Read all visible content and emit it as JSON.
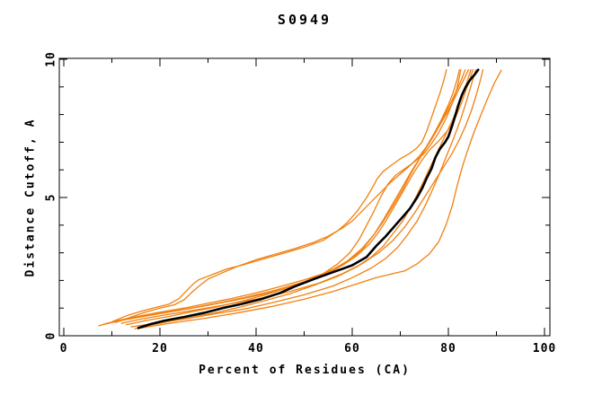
{
  "figure": {
    "title": "S0949"
  },
  "chart_data": {
    "type": "line",
    "title": "S0949",
    "xlabel": "Percent of Residues (CA)",
    "ylabel": "Distance Cutoff, A",
    "xlim": [
      0,
      100
    ],
    "ylim": [
      0,
      10
    ],
    "x_major_ticks": [
      0,
      20,
      40,
      60,
      80,
      100
    ],
    "x_minor_step": 10,
    "y_major_ticks": [
      0,
      5,
      10
    ],
    "y_minor_step": 1,
    "grid": false,
    "legend_position": "none",
    "colors": {
      "axis": "#000000",
      "model_line": "#f08010",
      "highlight_line": "#000000"
    },
    "highlight_series": {
      "name": "highlighted-model",
      "color": "#000000",
      "points": [
        [
          15.5,
          0.28
        ],
        [
          18,
          0.42
        ],
        [
          21,
          0.55
        ],
        [
          25,
          0.68
        ],
        [
          29,
          0.82
        ],
        [
          33,
          1.0
        ],
        [
          37,
          1.15
        ],
        [
          41,
          1.32
        ],
        [
          45,
          1.55
        ],
        [
          48,
          1.78
        ],
        [
          52,
          2.05
        ],
        [
          56,
          2.3
        ],
        [
          60,
          2.55
        ],
        [
          63,
          2.85
        ],
        [
          65,
          3.25
        ],
        [
          67,
          3.6
        ],
        [
          69,
          4.0
        ],
        [
          70.5,
          4.3
        ],
        [
          72,
          4.6
        ],
        [
          73.5,
          5.0
        ],
        [
          74.6,
          5.35
        ],
        [
          75.5,
          5.7
        ],
        [
          76.5,
          6.05
        ],
        [
          77.3,
          6.45
        ],
        [
          78.2,
          6.75
        ],
        [
          79.3,
          7.0
        ],
        [
          80,
          7.2
        ],
        [
          80.8,
          7.6
        ],
        [
          81.5,
          8.0
        ],
        [
          82.1,
          8.35
        ],
        [
          82.8,
          8.7
        ],
        [
          83.6,
          9.0
        ],
        [
          84.5,
          9.25
        ],
        [
          85.5,
          9.45
        ],
        [
          86.2,
          9.62
        ]
      ]
    },
    "series": [
      {
        "name": "model-01",
        "color": "#f08010",
        "points": [
          [
            10.2,
            0.52
          ],
          [
            13,
            0.72
          ],
          [
            16,
            0.88
          ],
          [
            19,
            1.02
          ],
          [
            22,
            1.15
          ],
          [
            24,
            1.35
          ],
          [
            25.5,
            1.62
          ],
          [
            27,
            1.88
          ],
          [
            28,
            2.02
          ],
          [
            31,
            2.22
          ],
          [
            34,
            2.42
          ],
          [
            37,
            2.55
          ],
          [
            40,
            2.7
          ],
          [
            43,
            2.85
          ],
          [
            47,
            3.05
          ],
          [
            50,
            3.2
          ],
          [
            54,
            3.45
          ],
          [
            57,
            3.8
          ],
          [
            59,
            4.1
          ],
          [
            61,
            4.5
          ],
          [
            63,
            5.0
          ],
          [
            64.5,
            5.45
          ],
          [
            65.2,
            5.68
          ],
          [
            66.5,
            5.95
          ],
          [
            68,
            6.15
          ],
          [
            70,
            6.4
          ],
          [
            72,
            6.6
          ],
          [
            73.5,
            6.8
          ],
          [
            74.5,
            7.0
          ],
          [
            75.5,
            7.4
          ],
          [
            76.5,
            7.9
          ],
          [
            77.5,
            8.4
          ],
          [
            78.3,
            8.8
          ],
          [
            79,
            9.2
          ],
          [
            79.6,
            9.62
          ]
        ]
      },
      {
        "name": "model-02",
        "color": "#f08010",
        "points": [
          [
            10.8,
            0.48
          ],
          [
            14,
            0.68
          ],
          [
            17,
            0.85
          ],
          [
            20,
            1.0
          ],
          [
            23,
            1.12
          ],
          [
            25,
            1.3
          ],
          [
            26.5,
            1.55
          ],
          [
            28.5,
            1.85
          ],
          [
            30,
            2.05
          ],
          [
            33,
            2.28
          ],
          [
            36,
            2.5
          ],
          [
            40,
            2.75
          ],
          [
            44,
            2.95
          ],
          [
            48,
            3.15
          ],
          [
            52,
            3.38
          ],
          [
            55,
            3.6
          ],
          [
            58,
            3.9
          ],
          [
            60,
            4.15
          ],
          [
            62,
            4.5
          ],
          [
            64,
            4.85
          ],
          [
            66,
            5.2
          ],
          [
            68,
            5.55
          ],
          [
            70,
            5.85
          ],
          [
            72,
            6.15
          ],
          [
            74,
            6.5
          ],
          [
            75.5,
            6.85
          ],
          [
            77,
            7.3
          ],
          [
            78.5,
            7.8
          ],
          [
            80,
            8.35
          ],
          [
            81,
            8.8
          ],
          [
            81.8,
            9.25
          ],
          [
            82.3,
            9.62
          ]
        ]
      },
      {
        "name": "model-03",
        "color": "#f08010",
        "points": [
          [
            7.3,
            0.36
          ],
          [
            9,
            0.45
          ],
          [
            12,
            0.58
          ],
          [
            16,
            0.72
          ],
          [
            20,
            0.85
          ],
          [
            25,
            1.0
          ],
          [
            30,
            1.18
          ],
          [
            35,
            1.35
          ],
          [
            40,
            1.55
          ],
          [
            45,
            1.78
          ],
          [
            50,
            2.02
          ],
          [
            54,
            2.25
          ],
          [
            58,
            2.55
          ],
          [
            61,
            2.9
          ],
          [
            63.5,
            3.3
          ],
          [
            65.5,
            3.75
          ],
          [
            67,
            4.15
          ],
          [
            68.5,
            4.6
          ],
          [
            70,
            5.05
          ],
          [
            71.5,
            5.5
          ],
          [
            73,
            5.95
          ],
          [
            74.5,
            6.35
          ],
          [
            76,
            6.7
          ],
          [
            78,
            7.05
          ],
          [
            80,
            7.45
          ],
          [
            81.5,
            7.9
          ],
          [
            82.7,
            8.4
          ],
          [
            83.7,
            8.9
          ],
          [
            84.5,
            9.3
          ],
          [
            85.1,
            9.62
          ]
        ]
      },
      {
        "name": "model-04",
        "color": "#f08010",
        "points": [
          [
            13,
            0.4
          ],
          [
            17,
            0.55
          ],
          [
            22,
            0.7
          ],
          [
            27,
            0.88
          ],
          [
            32,
            1.05
          ],
          [
            37,
            1.25
          ],
          [
            42,
            1.48
          ],
          [
            46,
            1.7
          ],
          [
            50,
            1.95
          ],
          [
            54,
            2.25
          ],
          [
            57,
            2.6
          ],
          [
            59.5,
            3.0
          ],
          [
            61.5,
            3.5
          ],
          [
            63,
            4.0
          ],
          [
            64.5,
            4.5
          ],
          [
            66,
            5.05
          ],
          [
            67.5,
            5.5
          ],
          [
            69,
            5.8
          ],
          [
            71,
            6.05
          ],
          [
            73,
            6.3
          ],
          [
            75,
            6.6
          ],
          [
            76.5,
            6.95
          ],
          [
            78,
            7.35
          ],
          [
            79.5,
            7.85
          ],
          [
            80.8,
            8.4
          ],
          [
            81.8,
            8.95
          ],
          [
            82.6,
            9.62
          ]
        ]
      },
      {
        "name": "model-05",
        "color": "#f08010",
        "points": [
          [
            14.8,
            0.25
          ],
          [
            18,
            0.38
          ],
          [
            22,
            0.52
          ],
          [
            27,
            0.68
          ],
          [
            32,
            0.85
          ],
          [
            37,
            1.05
          ],
          [
            42,
            1.28
          ],
          [
            47,
            1.52
          ],
          [
            52,
            1.82
          ],
          [
            57,
            2.15
          ],
          [
            61,
            2.5
          ],
          [
            64,
            2.85
          ],
          [
            66.5,
            3.25
          ],
          [
            68.5,
            3.7
          ],
          [
            70.5,
            4.15
          ],
          [
            72,
            4.6
          ],
          [
            73.5,
            5.1
          ],
          [
            75,
            5.65
          ],
          [
            76.5,
            6.2
          ],
          [
            78,
            6.75
          ],
          [
            79.5,
            7.3
          ],
          [
            81,
            7.85
          ],
          [
            82.3,
            8.4
          ],
          [
            83.4,
            8.9
          ],
          [
            84.1,
            9.3
          ],
          [
            84.7,
            9.62
          ]
        ]
      },
      {
        "name": "model-06",
        "color": "#f08010",
        "points": [
          [
            14,
            0.32
          ],
          [
            19,
            0.45
          ],
          [
            25,
            0.6
          ],
          [
            31,
            0.78
          ],
          [
            38,
            0.98
          ],
          [
            44,
            1.22
          ],
          [
            50,
            1.48
          ],
          [
            56,
            1.8
          ],
          [
            60,
            2.1
          ],
          [
            64,
            2.45
          ],
          [
            67,
            2.8
          ],
          [
            69.5,
            3.2
          ],
          [
            71.5,
            3.65
          ],
          [
            73.5,
            4.15
          ],
          [
            75,
            4.65
          ],
          [
            76.5,
            5.2
          ],
          [
            78,
            5.8
          ],
          [
            79.5,
            6.45
          ],
          [
            81,
            7.1
          ],
          [
            82.5,
            7.8
          ],
          [
            83.8,
            8.5
          ],
          [
            84.8,
            9.1
          ],
          [
            85.7,
            9.62
          ]
        ]
      },
      {
        "name": "model-07",
        "color": "#f08010",
        "points": [
          [
            12,
            0.45
          ],
          [
            16,
            0.6
          ],
          [
            21,
            0.75
          ],
          [
            27,
            0.92
          ],
          [
            33,
            1.1
          ],
          [
            40,
            1.32
          ],
          [
            47,
            1.6
          ],
          [
            53,
            1.9
          ],
          [
            58,
            2.25
          ],
          [
            62,
            2.6
          ],
          [
            65.5,
            3.0
          ],
          [
            68.5,
            3.45
          ],
          [
            71,
            3.95
          ],
          [
            73,
            4.45
          ],
          [
            75,
            5.0
          ],
          [
            77,
            5.55
          ],
          [
            79,
            6.1
          ],
          [
            80.8,
            6.6
          ],
          [
            82.3,
            7.1
          ],
          [
            83.6,
            7.6
          ],
          [
            84.8,
            8.15
          ],
          [
            85.8,
            8.7
          ],
          [
            86.6,
            9.2
          ],
          [
            87.2,
            9.62
          ]
        ]
      },
      {
        "name": "model-08",
        "color": "#f08010",
        "points": [
          [
            16,
            0.28
          ],
          [
            22,
            0.45
          ],
          [
            29,
            0.62
          ],
          [
            36,
            0.82
          ],
          [
            43,
            1.05
          ],
          [
            50,
            1.32
          ],
          [
            56,
            1.6
          ],
          [
            61,
            1.88
          ],
          [
            65,
            2.1
          ],
          [
            68.5,
            2.25
          ],
          [
            71,
            2.35
          ],
          [
            73.5,
            2.6
          ],
          [
            76,
            2.95
          ],
          [
            78,
            3.4
          ],
          [
            79.6,
            4.05
          ],
          [
            80.8,
            4.7
          ],
          [
            81.8,
            5.4
          ],
          [
            82.8,
            6.05
          ],
          [
            84,
            6.7
          ],
          [
            85.3,
            7.35
          ],
          [
            86.8,
            8.0
          ],
          [
            88.2,
            8.6
          ],
          [
            89.6,
            9.15
          ],
          [
            91,
            9.6
          ]
        ]
      },
      {
        "name": "model-09",
        "color": "#f08010",
        "points": [
          [
            9,
            0.44
          ],
          [
            13,
            0.6
          ],
          [
            18,
            0.76
          ],
          [
            24,
            0.92
          ],
          [
            30,
            1.1
          ],
          [
            36,
            1.3
          ],
          [
            42,
            1.52
          ],
          [
            48,
            1.8
          ],
          [
            53,
            2.1
          ],
          [
            57,
            2.45
          ],
          [
            60,
            2.8
          ],
          [
            62.5,
            3.2
          ],
          [
            64.5,
            3.65
          ],
          [
            66.5,
            4.15
          ],
          [
            68.5,
            4.7
          ],
          [
            70.5,
            5.3
          ],
          [
            72.5,
            5.95
          ],
          [
            74.5,
            6.55
          ],
          [
            76.5,
            7.15
          ],
          [
            78.5,
            7.75
          ],
          [
            80.3,
            8.35
          ],
          [
            81.8,
            8.9
          ],
          [
            82.8,
            9.3
          ],
          [
            83.5,
            9.62
          ]
        ]
      },
      {
        "name": "model-10",
        "color": "#f08010",
        "points": [
          [
            8,
            0.4
          ],
          [
            11,
            0.52
          ],
          [
            15,
            0.65
          ],
          [
            20,
            0.8
          ],
          [
            26,
            0.98
          ],
          [
            32,
            1.18
          ],
          [
            38,
            1.4
          ],
          [
            44,
            1.65
          ],
          [
            50,
            1.95
          ],
          [
            55,
            2.3
          ],
          [
            59,
            2.7
          ],
          [
            62,
            3.15
          ],
          [
            64.5,
            3.65
          ],
          [
            66.5,
            4.2
          ],
          [
            68.5,
            4.8
          ],
          [
            70.5,
            5.4
          ],
          [
            72.5,
            6.0
          ],
          [
            74.5,
            6.55
          ],
          [
            76.5,
            7.1
          ],
          [
            78.5,
            7.7
          ],
          [
            80.5,
            8.3
          ],
          [
            82,
            8.85
          ],
          [
            83.3,
            9.3
          ],
          [
            84.2,
            9.62
          ]
        ]
      }
    ]
  }
}
